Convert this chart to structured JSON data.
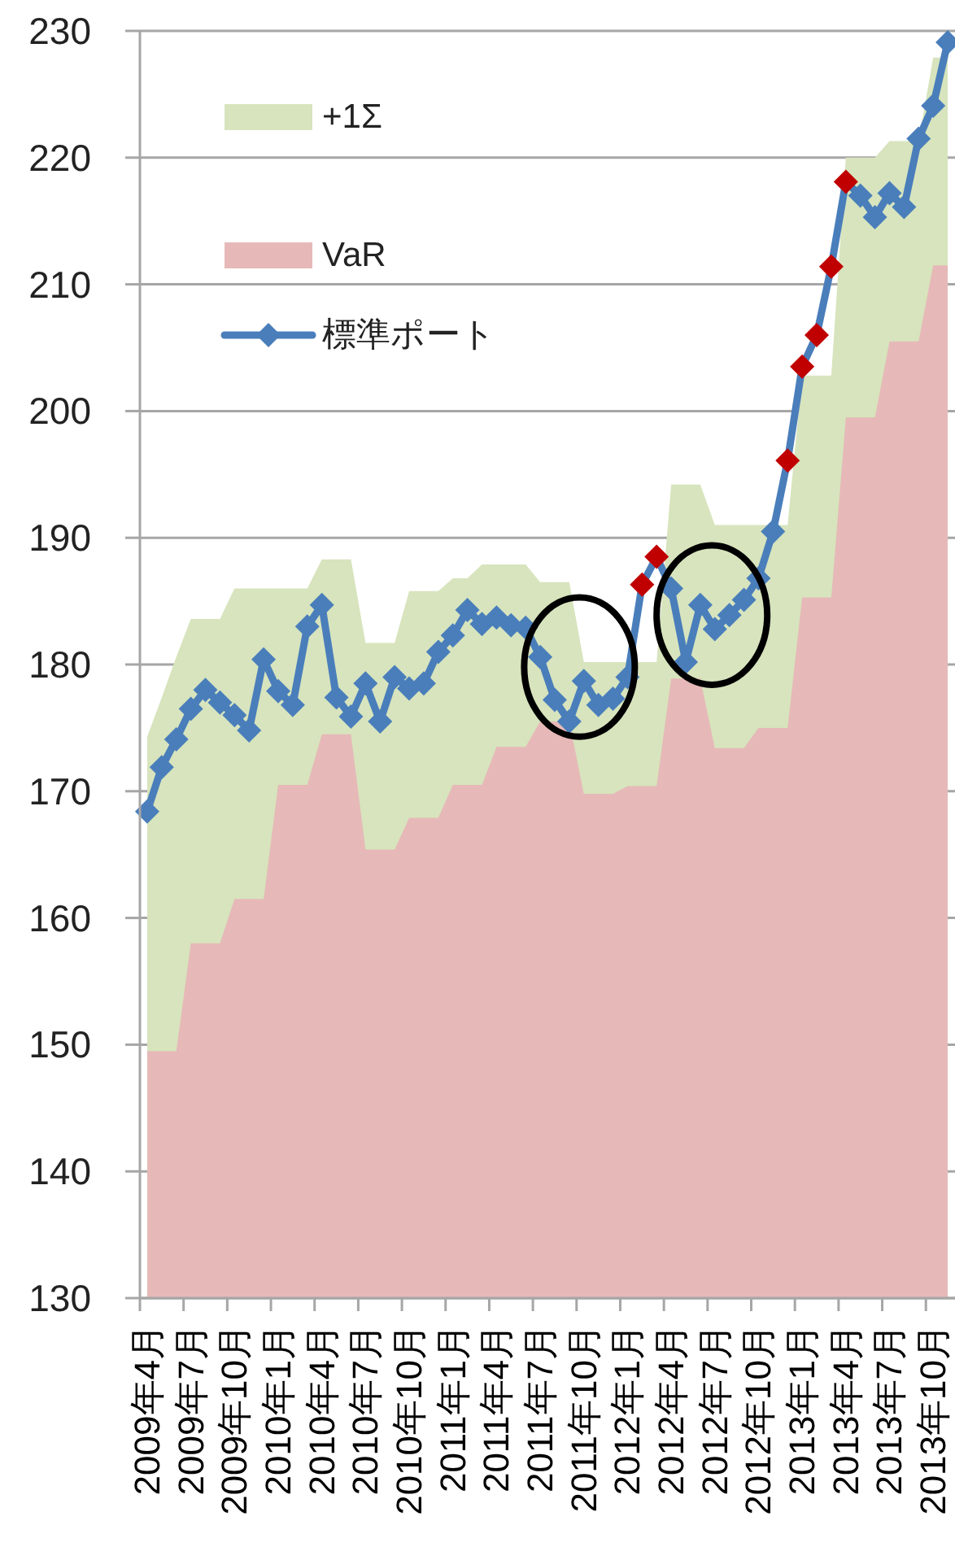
{
  "chart_data": {
    "type": "area",
    "categories": [
      "2009年4月",
      null,
      null,
      "2009年7月",
      null,
      null,
      "2009年10月",
      null,
      null,
      "2010年1月",
      null,
      null,
      "2010年4月",
      null,
      null,
      "2010年7月",
      null,
      null,
      "2010年10月",
      null,
      null,
      "2011年1月",
      null,
      null,
      "2011年4月",
      null,
      null,
      "2011年7月",
      null,
      null,
      "2011年10月",
      null,
      null,
      "2012年1月",
      null,
      null,
      "2012年4月",
      null,
      null,
      "2012年7月",
      null,
      null,
      "2012年10月",
      null,
      null,
      "2013年1月",
      null,
      null,
      "2013年4月",
      null,
      null,
      "2013年7月",
      null,
      null,
      "2013年10月",
      null
    ],
    "series": [
      {
        "name": "+1Σ",
        "color": "#d7e4bd",
        "values": [
          174.3,
          177.4,
          180.6,
          183.6,
          183.6,
          183.6,
          186.0,
          186.0,
          186.0,
          186.0,
          186.0,
          186.0,
          188.3,
          188.3,
          188.3,
          181.7,
          181.7,
          181.7,
          185.8,
          185.8,
          185.8,
          186.8,
          186.8,
          187.9,
          187.9,
          187.9,
          187.9,
          186.5,
          186.5,
          186.5,
          180.2,
          180.2,
          180.2,
          180.2,
          180.2,
          180.2,
          194.2,
          194.2,
          194.2,
          191.0,
          191.0,
          191.0,
          191.0,
          191.0,
          191.0,
          202.8,
          202.8,
          202.8,
          220.0,
          220.0,
          220.0,
          221.3,
          221.3,
          221.3,
          227.9,
          227.9
        ]
      },
      {
        "name": "VaR",
        "color": "#e6b9b8",
        "values": [
          149.5,
          149.5,
          149.5,
          158.0,
          158.0,
          158.0,
          161.5,
          161.5,
          161.5,
          170.5,
          170.5,
          170.5,
          174.5,
          174.5,
          174.5,
          165.4,
          165.4,
          165.4,
          167.9,
          167.9,
          167.9,
          170.5,
          170.5,
          170.5,
          173.5,
          173.5,
          173.5,
          175.5,
          175.5,
          175.5,
          169.8,
          169.8,
          169.8,
          170.4,
          170.4,
          170.4,
          178.9,
          178.9,
          178.9,
          173.4,
          173.4,
          173.4,
          175.0,
          175.0,
          175.0,
          185.3,
          185.3,
          185.3,
          199.5,
          199.5,
          199.5,
          205.5,
          205.5,
          205.5,
          211.5,
          211.5
        ]
      },
      {
        "name": "標準ポート",
        "type": "line",
        "color": "#4a7ebb",
        "marker": "diamond",
        "values": [
          168.4,
          171.9,
          174.1,
          176.5,
          178.0,
          177.0,
          176.0,
          174.8,
          180.4,
          177.9,
          176.8,
          183.0,
          184.7,
          177.4,
          175.9,
          178.5,
          175.5,
          179.0,
          178.1,
          178.5,
          181.0,
          182.3,
          184.3,
          183.2,
          183.7,
          183.1,
          182.9,
          180.6,
          177.2,
          175.5,
          178.7,
          176.8,
          177.3,
          179.0,
          186.3,
          188.5,
          186.0,
          180.2,
          184.7,
          182.8,
          183.9,
          185.1,
          186.8,
          190.5,
          196.1,
          203.5,
          206.0,
          211.4,
          218.1,
          217.0,
          215.3,
          217.2,
          216.1,
          221.5,
          224.1,
          229.1
        ],
        "colors": [
          "#4a7ebb",
          "#4a7ebb",
          "#4a7ebb",
          "#4a7ebb",
          "#4a7ebb",
          "#4a7ebb",
          "#4a7ebb",
          "#4a7ebb",
          "#4a7ebb",
          "#4a7ebb",
          "#4a7ebb",
          "#4a7ebb",
          "#4a7ebb",
          "#4a7ebb",
          "#4a7ebb",
          "#4a7ebb",
          "#4a7ebb",
          "#4a7ebb",
          "#4a7ebb",
          "#4a7ebb",
          "#4a7ebb",
          "#4a7ebb",
          "#4a7ebb",
          "#4a7ebb",
          "#4a7ebb",
          "#4a7ebb",
          "#4a7ebb",
          "#4a7ebb",
          "#4a7ebb",
          "#4a7ebb",
          "#4a7ebb",
          "#4a7ebb",
          "#4a7ebb",
          "#4a7ebb",
          "#c00000",
          "#c00000",
          "#4a7ebb",
          "#4a7ebb",
          "#4a7ebb",
          "#4a7ebb",
          "#4a7ebb",
          "#4a7ebb",
          "#4a7ebb",
          "#4a7ebb",
          "#c00000",
          "#c00000",
          "#c00000",
          "#c00000",
          "#c00000",
          "#4a7ebb",
          "#4a7ebb",
          "#4a7ebb",
          "#4a7ebb",
          "#4a7ebb",
          "#4a7ebb",
          "#4a7ebb"
        ]
      }
    ],
    "ylim": [
      130,
      230
    ],
    "yticks": [
      130,
      140,
      150,
      160,
      170,
      180,
      190,
      200,
      210,
      220,
      230
    ],
    "grid": "y",
    "legend": "top left"
  }
}
